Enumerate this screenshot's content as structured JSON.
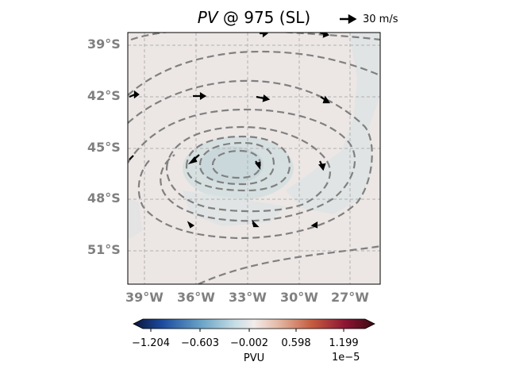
{
  "title": {
    "italic": "PV",
    "rest": " @ 975 (SL)"
  },
  "quiver_key": {
    "label": "30 m/s"
  },
  "map": {
    "lat_labels": [
      "39°S",
      "42°S",
      "45°S",
      "48°S",
      "51°S"
    ],
    "lon_labels": [
      "39°W",
      "36°W",
      "33°W",
      "30°W",
      "27°W"
    ],
    "background_color": "#ece7e5",
    "contour_color": "#808080",
    "grid": true
  },
  "colorbar": {
    "ticks": [
      "−1.204",
      "−0.603",
      "−0.002",
      "0.598",
      "1.199"
    ],
    "label": "PVU",
    "exponent": "1e−5",
    "colors": [
      "#0b1437",
      "#1b4ba0",
      "#68a3c6",
      "#c5dde6",
      "#f2ecea",
      "#e4b9a5",
      "#c65b3e",
      "#8c1433",
      "#3a0b10"
    ]
  }
}
